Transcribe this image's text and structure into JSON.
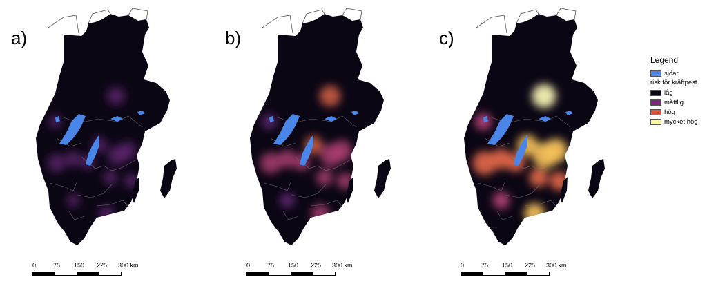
{
  "panels": [
    {
      "label": "a)",
      "intensity": 1
    },
    {
      "label": "b)",
      "intensity": 2
    },
    {
      "label": "c)",
      "intensity": 3
    }
  ],
  "scale": {
    "ticks": [
      "0",
      "75",
      "150",
      "225",
      "300 km"
    ]
  },
  "legend": {
    "title": "Legend",
    "lakes": {
      "label": "sjöar",
      "color": "#4a86e8"
    },
    "risk_title": "risk för kräftpest",
    "classes": [
      {
        "label": "låg",
        "color": "#0b0614"
      },
      {
        "label": "måttlig",
        "color": "#7a2a7a"
      },
      {
        "label": "hög",
        "color": "#e0523f"
      },
      {
        "label": "mycket hög",
        "color": "#fbf7a2"
      }
    ]
  }
}
